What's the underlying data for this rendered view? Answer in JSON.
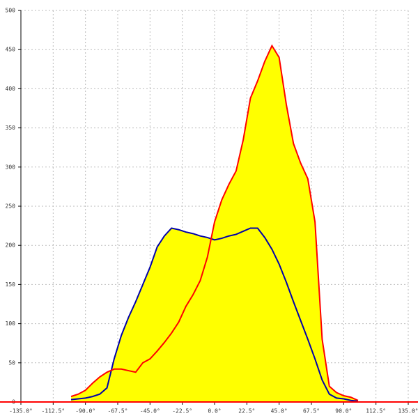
{
  "chart_data": {
    "type": "area",
    "x": [
      -100,
      -95,
      -90,
      -85,
      -80,
      -75,
      -70,
      -65,
      -60,
      -55,
      -50,
      -45,
      -40,
      -35,
      -30,
      -25,
      -20,
      -15,
      -10,
      -5,
      0,
      5,
      10,
      15,
      20,
      25,
      30,
      35,
      40,
      45,
      50,
      55,
      60,
      65,
      70,
      75,
      80,
      85,
      90,
      95,
      100
    ],
    "series": [
      {
        "color": "#0000aa",
        "fill": "#ffff00",
        "values": [
          3,
          4,
          5,
          7,
          10,
          18,
          55,
          85,
          108,
          128,
          150,
          172,
          198,
          212,
          222,
          220,
          217,
          215,
          212,
          210,
          207,
          209,
          212,
          214,
          218,
          222,
          222,
          210,
          195,
          176,
          153,
          128,
          104,
          80,
          55,
          28,
          10,
          5,
          4,
          2,
          1
        ]
      },
      {
        "color": "#ff0000",
        "fill": "#ffff00",
        "values": [
          7,
          10,
          15,
          24,
          32,
          38,
          42,
          42,
          40,
          38,
          50,
          55,
          65,
          76,
          88,
          102,
          122,
          137,
          155,
          185,
          230,
          258,
          278,
          295,
          335,
          388,
          410,
          435,
          455,
          440,
          380,
          330,
          305,
          285,
          230,
          80,
          20,
          12,
          8,
          6,
          2
        ]
      }
    ],
    "xlim": [
      -135,
      135
    ],
    "ylim": [
      0,
      500
    ],
    "xticks": [
      {
        "value": -135,
        "label": "-135.0°"
      },
      {
        "value": -112.5,
        "label": "-112.5°"
      },
      {
        "value": -90,
        "label": "-90.0°"
      },
      {
        "value": -67.5,
        "label": "-67.5°"
      },
      {
        "value": -45,
        "label": "-45.0°"
      },
      {
        "value": -22.5,
        "label": "-22.5°"
      },
      {
        "value": 0,
        "label": "0.0°"
      },
      {
        "value": 22.5,
        "label": "22.5°"
      },
      {
        "value": 45,
        "label": "45.0°"
      },
      {
        "value": 67.5,
        "label": "67.5°"
      },
      {
        "value": 90,
        "label": "90.0°"
      },
      {
        "value": 112.5,
        "label": "112.5°"
      },
      {
        "value": 135,
        "label": "135.0°"
      }
    ],
    "yticks": [
      0,
      50,
      100,
      150,
      200,
      250,
      300,
      350,
      400,
      450,
      500
    ],
    "grid": true
  }
}
